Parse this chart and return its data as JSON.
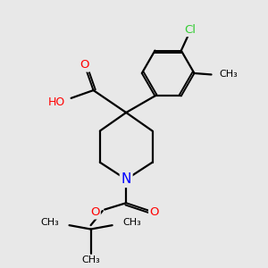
{
  "background_color": "#e8e8e8",
  "bond_lw": 1.6,
  "atom_colors": {
    "O": "#ff0000",
    "N": "#0000ff",
    "Cl": "#33cc33",
    "C": "#000000"
  },
  "font_size": 8.5,
  "fig_size": [
    3.0,
    3.0
  ],
  "dpi": 100,
  "xlim": [
    0,
    10
  ],
  "ylim": [
    0,
    10
  ]
}
